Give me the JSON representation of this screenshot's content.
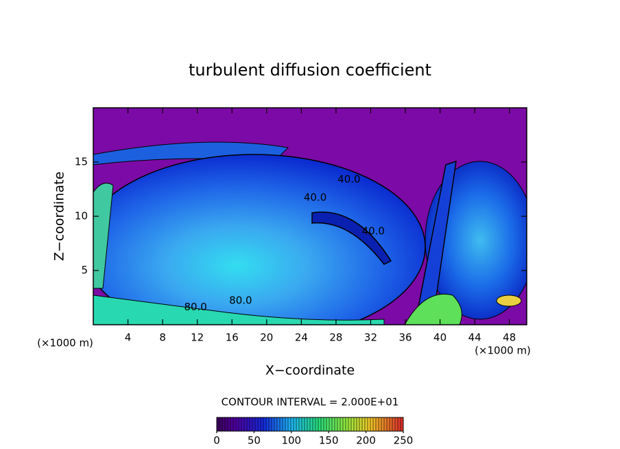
{
  "chart_data": {
    "type": "contour",
    "title": "turbulent diffusion coefficient",
    "x_label": "X−coordinate",
    "y_label": "Z−coordinate",
    "x_unit": "(×1000 m)",
    "y_unit": "(×1000 m)",
    "xlim": [
      0,
      50
    ],
    "ylim": [
      0,
      20
    ],
    "xticks": [
      4,
      8,
      12,
      16,
      20,
      24,
      28,
      32,
      36,
      40,
      44,
      48
    ],
    "yticks": [
      5,
      10,
      15
    ],
    "contour_interval_label": "CONTOUR INTERVAL = 2.000E+01",
    "annotations": [
      {
        "text": "40.0",
        "x": 29.5,
        "y": 13.4
      },
      {
        "text": "40.0",
        "x": 25.6,
        "y": 11.7
      },
      {
        "text": "40.0",
        "x": 32.3,
        "y": 8.6
      },
      {
        "text": "80.0",
        "x": 17.0,
        "y": 2.2
      },
      {
        "text": "80.0",
        "x": 11.8,
        "y": 1.6
      }
    ],
    "colorbar": {
      "lim": [
        0,
        250
      ],
      "ticks": [
        0,
        50,
        100,
        150,
        200,
        250
      ]
    }
  }
}
